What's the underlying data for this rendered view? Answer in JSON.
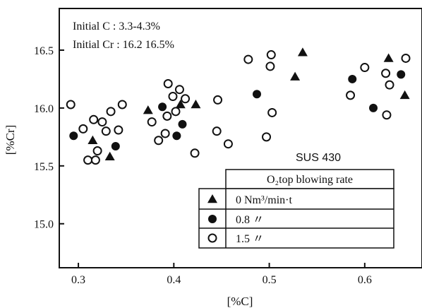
{
  "chart_data": {
    "type": "scatter",
    "title": "",
    "xlabel": "[%C]",
    "ylabel": "[%Cr]",
    "xlim": [
      0.28,
      0.66
    ],
    "ylim": [
      14.62,
      16.86
    ],
    "x_ticks": [
      "0.3",
      "0.4",
      "0.5",
      "0.6"
    ],
    "x_tick_values": [
      0.3,
      0.4,
      0.5,
      0.6
    ],
    "y_ticks": [
      "15.0",
      "15.5",
      "16.0",
      "16.5"
    ],
    "y_tick_values": [
      15.0,
      15.5,
      16.0,
      16.5
    ],
    "annotations": [
      "Initial C : 3.3-4.3%",
      "Initial Cr : 16.2 16.5%"
    ],
    "legend_title": "SUS 430",
    "legend_header": "O₂top blowing rate",
    "grid": false,
    "legend_position": "bottom-right",
    "series": [
      {
        "name": "0 Nm³/min·t",
        "marker": "filled-triangle",
        "points": [
          [
            0.315,
            15.72
          ],
          [
            0.333,
            15.58
          ],
          [
            0.373,
            15.98
          ],
          [
            0.407,
            16.03
          ],
          [
            0.423,
            16.03
          ],
          [
            0.527,
            16.27
          ],
          [
            0.535,
            16.48
          ],
          [
            0.625,
            16.43
          ],
          [
            0.642,
            16.11
          ]
        ]
      },
      {
        "name": "0.8 〃",
        "marker": "filled-circle",
        "points": [
          [
            0.295,
            15.76
          ],
          [
            0.339,
            15.67
          ],
          [
            0.388,
            16.01
          ],
          [
            0.403,
            15.76
          ],
          [
            0.409,
            15.86
          ],
          [
            0.487,
            16.12
          ],
          [
            0.587,
            16.25
          ],
          [
            0.609,
            16.0
          ],
          [
            0.638,
            16.29
          ]
        ]
      },
      {
        "name": "1.5 〃",
        "marker": "open-circle",
        "points": [
          [
            0.292,
            16.03
          ],
          [
            0.305,
            15.82
          ],
          [
            0.31,
            15.55
          ],
          [
            0.316,
            15.9
          ],
          [
            0.318,
            15.55
          ],
          [
            0.32,
            15.63
          ],
          [
            0.325,
            15.88
          ],
          [
            0.329,
            15.8
          ],
          [
            0.334,
            15.97
          ],
          [
            0.342,
            15.81
          ],
          [
            0.346,
            16.03
          ],
          [
            0.377,
            15.88
          ],
          [
            0.384,
            15.72
          ],
          [
            0.391,
            15.78
          ],
          [
            0.393,
            15.93
          ],
          [
            0.394,
            16.21
          ],
          [
            0.399,
            16.1
          ],
          [
            0.402,
            15.97
          ],
          [
            0.406,
            16.16
          ],
          [
            0.412,
            16.08
          ],
          [
            0.422,
            15.61
          ],
          [
            0.445,
            15.8
          ],
          [
            0.446,
            16.07
          ],
          [
            0.457,
            15.69
          ],
          [
            0.478,
            16.42
          ],
          [
            0.497,
            15.75
          ],
          [
            0.501,
            16.36
          ],
          [
            0.502,
            16.46
          ],
          [
            0.503,
            15.96
          ],
          [
            0.585,
            16.11
          ],
          [
            0.6,
            16.35
          ],
          [
            0.622,
            16.3
          ],
          [
            0.623,
            15.94
          ],
          [
            0.626,
            16.2
          ],
          [
            0.643,
            16.43
          ]
        ]
      }
    ]
  }
}
